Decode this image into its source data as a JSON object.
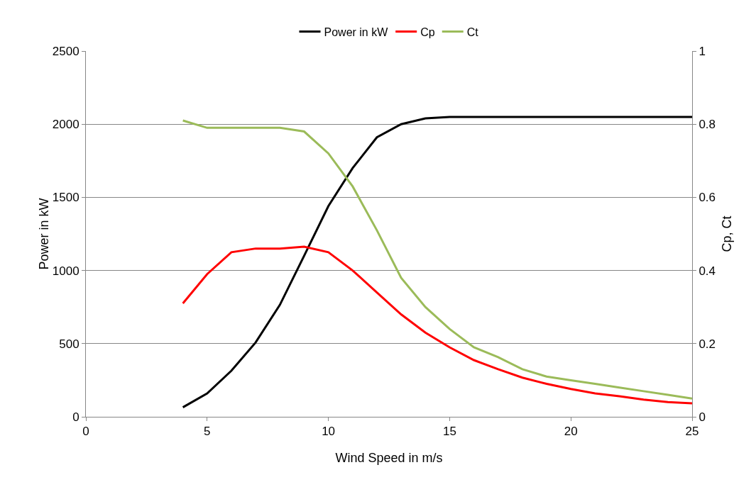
{
  "chart_data": {
    "type": "line",
    "xlabel": "Wind Speed in m/s",
    "ylabel": "Power in kW",
    "y2label": "Cp, Ct",
    "x": [
      4,
      5,
      6,
      7,
      8,
      9,
      10,
      11,
      12,
      13,
      14,
      15,
      16,
      17,
      18,
      19,
      20,
      21,
      22,
      23,
      24,
      25
    ],
    "series": [
      {
        "name": "Power in kW",
        "color": "#000000",
        "values": [
          65,
          160,
          315,
          508,
          765,
          1100,
          1440,
          1700,
          1910,
          2000,
          2040,
          2050,
          2050,
          2050,
          2050,
          2050,
          2050,
          2050,
          2050,
          2050,
          2050,
          2050
        ]
      },
      {
        "name": "Cp",
        "color": "#ff0000",
        "axis": "y2",
        "values": [
          0.31,
          0.39,
          0.45,
          0.46,
          0.46,
          0.465,
          0.45,
          0.4,
          0.34,
          0.28,
          0.23,
          0.19,
          0.155,
          0.13,
          0.107,
          0.09,
          0.076,
          0.064,
          0.056,
          0.047,
          0.04,
          0.037
        ]
      },
      {
        "name": "Ct",
        "color": "#9bbb59",
        "axis": "y2",
        "values": [
          0.81,
          0.79,
          0.79,
          0.79,
          0.79,
          0.78,
          0.72,
          0.63,
          0.51,
          0.38,
          0.3,
          0.24,
          0.19,
          0.163,
          0.13,
          0.11,
          0.1,
          0.09,
          0.08,
          0.07,
          0.06,
          0.05
        ]
      }
    ],
    "xlim": [
      0,
      25
    ],
    "xticks": [
      0,
      5,
      10,
      15,
      20,
      25
    ],
    "ylim": [
      0,
      2500
    ],
    "yticks": [
      0,
      500,
      1000,
      1500,
      2000,
      2500
    ],
    "y2lim": [
      0,
      1
    ],
    "y2ticks": [
      0,
      0.2,
      0.4,
      0.6,
      0.8,
      1
    ],
    "grid": "y",
    "legend": "top",
    "marker": "none",
    "line_style": "solid"
  }
}
